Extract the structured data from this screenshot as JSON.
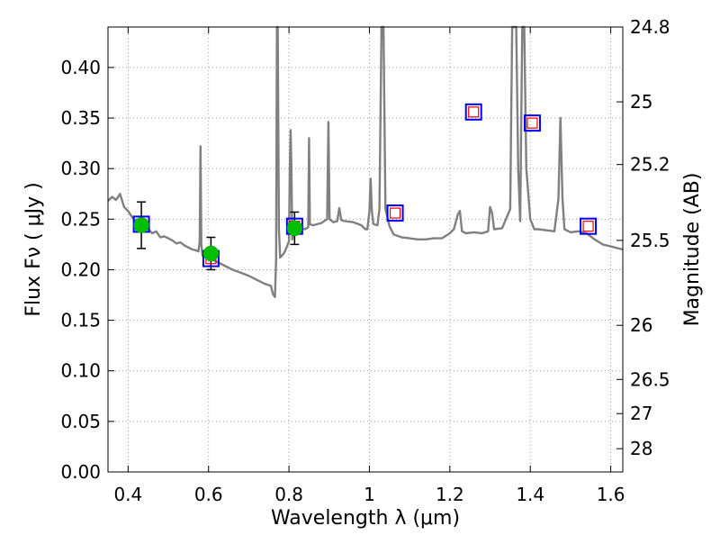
{
  "chart_data": {
    "type": "scatter",
    "xlabel": "Wavelength  λ (μm)",
    "ylabel": "Flux  Fν  ( μJy )",
    "ylabel_right": "Magnitude (AB)",
    "xlim": [
      0.35,
      1.63
    ],
    "ylim": [
      0.0,
      0.44
    ],
    "grid": true,
    "x_ticks": [
      {
        "value": 0.4,
        "label": "0.4"
      },
      {
        "value": 0.6,
        "label": "0.6"
      },
      {
        "value": 0.8,
        "label": "0.8"
      },
      {
        "value": 1.0,
        "label": "1"
      },
      {
        "value": 1.2,
        "label": "1.2"
      },
      {
        "value": 1.4,
        "label": "1.4"
      },
      {
        "value": 1.6,
        "label": "1.6"
      }
    ],
    "y_ticks": [
      {
        "value": 0.0,
        "label": "0.00"
      },
      {
        "value": 0.05,
        "label": "0.05"
      },
      {
        "value": 0.1,
        "label": "0.10"
      },
      {
        "value": 0.15,
        "label": "0.15"
      },
      {
        "value": 0.2,
        "label": "0.20"
      },
      {
        "value": 0.25,
        "label": "0.25"
      },
      {
        "value": 0.3,
        "label": "0.30"
      },
      {
        "value": 0.35,
        "label": "0.35"
      },
      {
        "value": 0.4,
        "label": "0.40"
      }
    ],
    "right_ticks": [
      {
        "flux": 0.44,
        "label": "24.8"
      },
      {
        "flux": 0.366,
        "label": "25"
      },
      {
        "flux": 0.304,
        "label": "25.2"
      },
      {
        "flux": 0.229,
        "label": "25.5"
      },
      {
        "flux": 0.145,
        "label": "26"
      },
      {
        "flux": 0.0915,
        "label": "26.5"
      },
      {
        "flux": 0.0577,
        "label": "27"
      },
      {
        "flux": 0.023,
        "label": "28"
      }
    ],
    "observed": [
      {
        "x": 0.433,
        "y": 0.244,
        "err": 0.023
      },
      {
        "x": 0.606,
        "y": 0.216,
        "err": 0.016
      },
      {
        "x": 0.814,
        "y": 0.241,
        "err": 0.016
      }
    ],
    "model_photometry": [
      {
        "x": 0.433,
        "y": 0.245
      },
      {
        "x": 0.606,
        "y": 0.211
      },
      {
        "x": 0.814,
        "y": 0.243
      },
      {
        "x": 1.064,
        "y": 0.256
      },
      {
        "x": 1.259,
        "y": 0.356
      },
      {
        "x": 1.405,
        "y": 0.345
      },
      {
        "x": 1.544,
        "y": 0.243
      }
    ],
    "spectrum": [
      [
        0.35,
        0.268
      ],
      [
        0.36,
        0.272
      ],
      [
        0.37,
        0.269
      ],
      [
        0.38,
        0.275
      ],
      [
        0.39,
        0.262
      ],
      [
        0.4,
        0.258
      ],
      [
        0.41,
        0.252
      ],
      [
        0.42,
        0.248
      ],
      [
        0.43,
        0.246
      ],
      [
        0.44,
        0.244
      ],
      [
        0.45,
        0.24
      ],
      [
        0.46,
        0.236
      ],
      [
        0.47,
        0.238
      ],
      [
        0.48,
        0.232
      ],
      [
        0.49,
        0.233
      ],
      [
        0.5,
        0.231
      ],
      [
        0.51,
        0.229
      ],
      [
        0.52,
        0.226
      ],
      [
        0.53,
        0.227
      ],
      [
        0.54,
        0.224
      ],
      [
        0.55,
        0.222
      ],
      [
        0.56,
        0.22
      ],
      [
        0.57,
        0.219
      ],
      [
        0.575,
        0.218
      ],
      [
        0.578,
        0.228
      ],
      [
        0.58,
        0.322
      ],
      [
        0.582,
        0.225
      ],
      [
        0.585,
        0.214
      ],
      [
        0.59,
        0.213
      ],
      [
        0.6,
        0.212
      ],
      [
        0.62,
        0.208
      ],
      [
        0.64,
        0.204
      ],
      [
        0.66,
        0.2
      ],
      [
        0.68,
        0.197
      ],
      [
        0.7,
        0.194
      ],
      [
        0.72,
        0.19
      ],
      [
        0.74,
        0.186
      ],
      [
        0.755,
        0.184
      ],
      [
        0.76,
        0.176
      ],
      [
        0.765,
        0.173
      ],
      [
        0.768,
        0.21
      ],
      [
        0.77,
        0.44
      ],
      [
        0.772,
        0.44
      ],
      [
        0.775,
        0.24
      ],
      [
        0.778,
        0.212
      ],
      [
        0.785,
        0.215
      ],
      [
        0.79,
        0.218
      ],
      [
        0.8,
        0.228
      ],
      [
        0.802,
        0.3
      ],
      [
        0.804,
        0.338
      ],
      [
        0.806,
        0.3
      ],
      [
        0.808,
        0.23
      ],
      [
        0.815,
        0.242
      ],
      [
        0.82,
        0.239
      ],
      [
        0.83,
        0.241
      ],
      [
        0.84,
        0.24
      ],
      [
        0.848,
        0.242
      ],
      [
        0.85,
        0.33
      ],
      [
        0.852,
        0.245
      ],
      [
        0.86,
        0.244
      ],
      [
        0.87,
        0.245
      ],
      [
        0.88,
        0.246
      ],
      [
        0.895,
        0.25
      ],
      [
        0.898,
        0.346
      ],
      [
        0.901,
        0.25
      ],
      [
        0.91,
        0.247
      ],
      [
        0.92,
        0.248
      ],
      [
        0.925,
        0.261
      ],
      [
        0.93,
        0.249
      ],
      [
        0.94,
        0.248
      ],
      [
        0.96,
        0.247
      ],
      [
        0.98,
        0.244
      ],
      [
        0.99,
        0.24
      ],
      [
        0.995,
        0.24
      ],
      [
        1.0,
        0.258
      ],
      [
        1.003,
        0.29
      ],
      [
        1.006,
        0.258
      ],
      [
        1.01,
        0.245
      ],
      [
        1.02,
        0.244
      ],
      [
        1.025,
        0.26
      ],
      [
        1.03,
        0.44
      ],
      [
        1.035,
        0.44
      ],
      [
        1.04,
        0.26
      ],
      [
        1.05,
        0.243
      ],
      [
        1.06,
        0.235
      ],
      [
        1.08,
        0.232
      ],
      [
        1.1,
        0.231
      ],
      [
        1.12,
        0.23
      ],
      [
        1.14,
        0.23
      ],
      [
        1.16,
        0.231
      ],
      [
        1.18,
        0.231
      ],
      [
        1.2,
        0.236
      ],
      [
        1.21,
        0.24
      ],
      [
        1.22,
        0.255
      ],
      [
        1.225,
        0.258
      ],
      [
        1.23,
        0.238
      ],
      [
        1.24,
        0.236
      ],
      [
        1.26,
        0.237
      ],
      [
        1.28,
        0.236
      ],
      [
        1.295,
        0.238
      ],
      [
        1.3,
        0.262
      ],
      [
        1.305,
        0.256
      ],
      [
        1.31,
        0.24
      ],
      [
        1.33,
        0.241
      ],
      [
        1.35,
        0.26
      ],
      [
        1.355,
        0.44
      ],
      [
        1.365,
        0.44
      ],
      [
        1.37,
        0.3
      ],
      [
        1.375,
        0.248
      ],
      [
        1.38,
        0.44
      ],
      [
        1.385,
        0.44
      ],
      [
        1.39,
        0.3
      ],
      [
        1.4,
        0.25
      ],
      [
        1.41,
        0.24
      ],
      [
        1.42,
        0.24
      ],
      [
        1.44,
        0.239
      ],
      [
        1.46,
        0.238
      ],
      [
        1.47,
        0.27
      ],
      [
        1.475,
        0.35
      ],
      [
        1.48,
        0.27
      ],
      [
        1.485,
        0.24
      ],
      [
        1.5,
        0.237
      ],
      [
        1.52,
        0.238
      ],
      [
        1.54,
        0.236
      ],
      [
        1.56,
        0.23
      ],
      [
        1.58,
        0.225
      ],
      [
        1.6,
        0.223
      ],
      [
        1.62,
        0.221
      ],
      [
        1.63,
        0.22
      ]
    ],
    "colors": {
      "spectrum": "#808080",
      "observed_marker": "#00bf00",
      "model_square_outer": "#0000ff",
      "model_square_inner": "#ff0000",
      "grid": "#9e9e9e"
    }
  }
}
